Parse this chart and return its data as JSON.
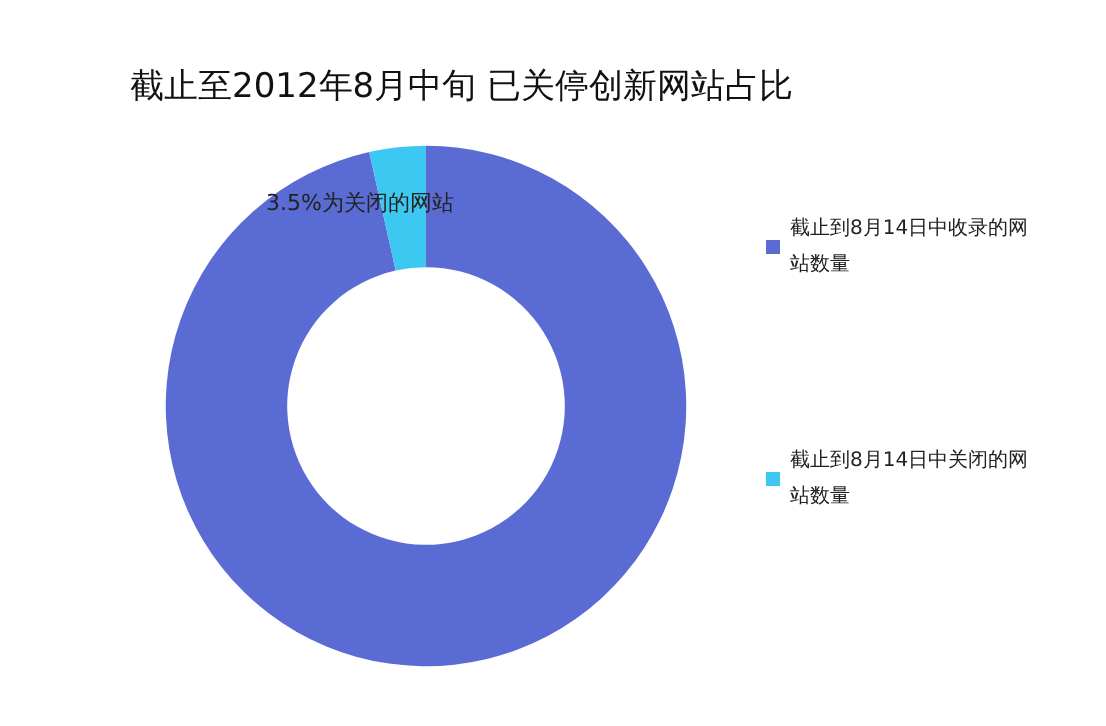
{
  "chart_data": {
    "type": "donut",
    "title": "截止至2012年8月中旬 已关停创新网站占比",
    "categories": [
      "截止到8月14日中收录的网站数量",
      "截止到8月14日中关闭的网站数量"
    ],
    "values": [
      96.5,
      3.5
    ],
    "colors": [
      "#5a6bd4",
      "#3cc8f0"
    ],
    "annotations": [
      "3.5%为关闭的网站"
    ],
    "legend": "right"
  }
}
